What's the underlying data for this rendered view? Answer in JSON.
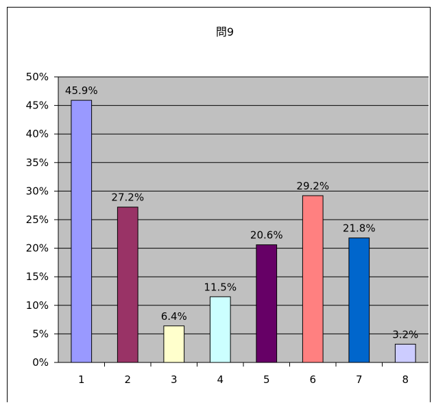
{
  "chart_data": {
    "type": "bar",
    "title": "問9",
    "xlabel": "",
    "ylabel": "",
    "categories": [
      "1",
      "2",
      "3",
      "4",
      "5",
      "6",
      "7",
      "8"
    ],
    "values": [
      45.9,
      27.2,
      6.4,
      11.5,
      20.6,
      29.2,
      21.8,
      3.2
    ],
    "value_labels": [
      "45.9%",
      "27.2%",
      "6.4%",
      "11.5%",
      "20.6%",
      "29.2%",
      "21.8%",
      "3.2%"
    ],
    "ylim": [
      0,
      50
    ],
    "yticks": [
      0,
      5,
      10,
      15,
      20,
      25,
      30,
      35,
      40,
      45,
      50
    ],
    "ytick_labels": [
      "0%",
      "5%",
      "10%",
      "15%",
      "20%",
      "25%",
      "30%",
      "35%",
      "40%",
      "45%",
      "50%"
    ],
    "grid": true,
    "plot_background": "#c0c0c0",
    "bar_colors": [
      "#9999ff",
      "#993366",
      "#ffffcc",
      "#ccffff",
      "#660066",
      "#ff8080",
      "#0066cc",
      "#ccccff"
    ]
  }
}
